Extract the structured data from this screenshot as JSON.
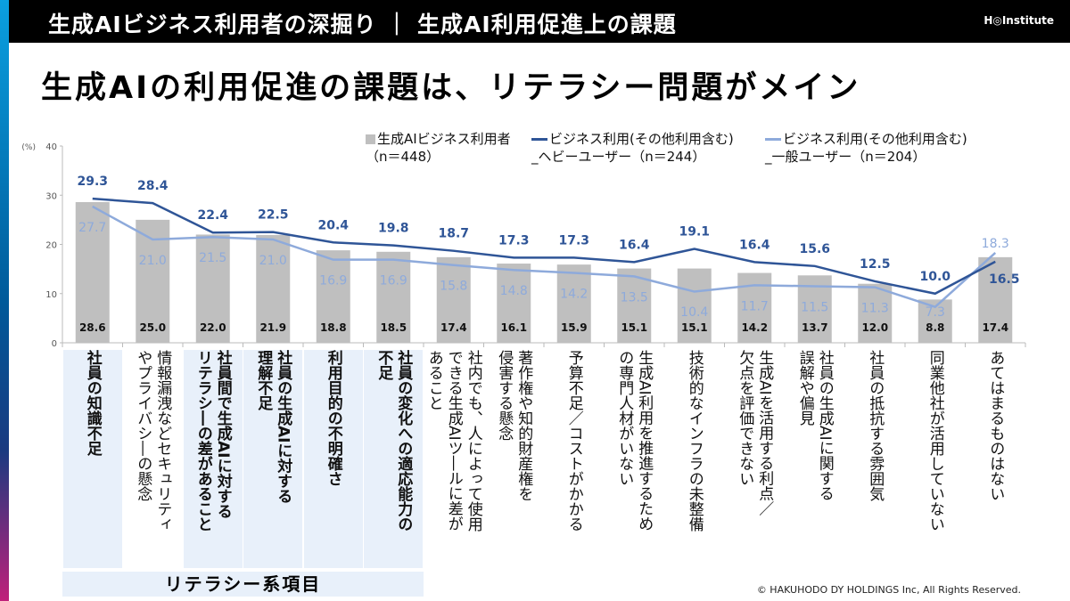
{
  "header": {
    "title": "生成AIビジネス利用者の深掘り ｜ 生成AI利用促進上の課題",
    "logo": "H◎Institute"
  },
  "page_title": "生成AIの利用促進の課題は、リテラシー問題がメイン",
  "literacy_label": "リテラシー系項目",
  "copyright": "© HAKUHODO DY HOLDINGS  Inc, All  Rights  Reserved.",
  "chart_data": {
    "type": "bar+line",
    "ylabel": "(%)",
    "ylim": [
      0,
      40
    ],
    "yticks": [
      "0",
      "10",
      "20",
      "30",
      "40"
    ],
    "categories": [
      "社員の知識不足",
      "情報漏洩などセキュリティ\nやプライバシ―の懸念",
      "社員間で生成AIに対する\nリテラシ―の差があること",
      "社員の生成AIに対する\n理解不足",
      "利用目的の不明確さ",
      "社員の変化への適応能力の\n不足",
      "社内でも、人によって使用\nできる生成AIツ―ルに差が\nあること",
      "著作権や知的財産権を\n侵害する懸念",
      "予算不足／コストがかかる",
      "生成AI利用を推進するため\nの専門人材がいない",
      "技術的なインフラの未整備",
      "生成AIを活用する利点／\n欠点を評価できない",
      "社員の生成AIに関する\n誤解や偏見",
      "社員の抵抗する雰囲気",
      "同業他社が活用していない",
      "あてはまるものはない"
    ],
    "highlighted": [
      0,
      2,
      3,
      4,
      5
    ],
    "series": [
      {
        "name": "生成AIビジネス利用者\n（n＝448）",
        "type": "bar",
        "color": "#bfbfbf",
        "values": [
          28.6,
          25.0,
          22.0,
          21.9,
          18.8,
          18.5,
          17.4,
          16.1,
          15.9,
          15.1,
          15.1,
          14.2,
          13.7,
          12.0,
          8.8,
          17.4
        ]
      },
      {
        "name": "ビジネス利用(その他利用含む)\n_ヘビーユーザー（n＝244）",
        "type": "line",
        "color": "#2f5597",
        "values": [
          29.3,
          28.4,
          22.4,
          22.5,
          20.4,
          19.8,
          18.7,
          17.3,
          17.3,
          16.4,
          19.1,
          16.4,
          15.6,
          12.5,
          10.0,
          16.5
        ]
      },
      {
        "name": "ビジネス利用(その他利用含む)\n_一般ユーザー（n＝204）",
        "type": "line",
        "color": "#8eaadb",
        "values": [
          27.7,
          21.0,
          21.5,
          21.0,
          16.9,
          16.9,
          15.8,
          14.8,
          14.2,
          13.5,
          10.4,
          11.7,
          11.5,
          11.3,
          7.3,
          18.3
        ]
      }
    ],
    "grid": false,
    "legend": "top"
  }
}
